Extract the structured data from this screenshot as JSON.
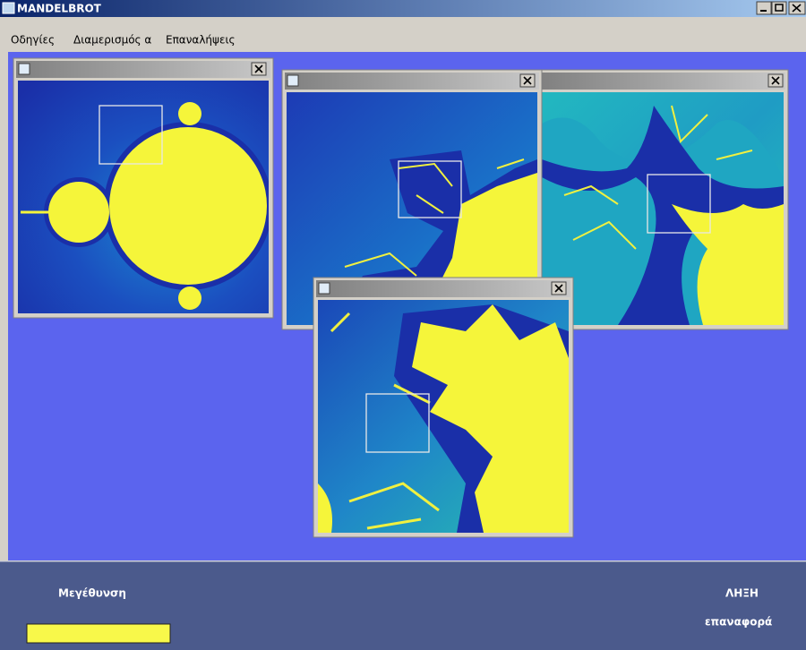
{
  "window": {
    "title": "MANDELBROT"
  },
  "menu": [
    "Οδηγίες",
    "Διαμερισμός α",
    "Επαναλήψεις"
  ],
  "footer": {
    "zoom_label": "Μεγέθυνση",
    "exit_button": "ΛΗΞΗ",
    "reset_button": "επαναφορά"
  }
}
